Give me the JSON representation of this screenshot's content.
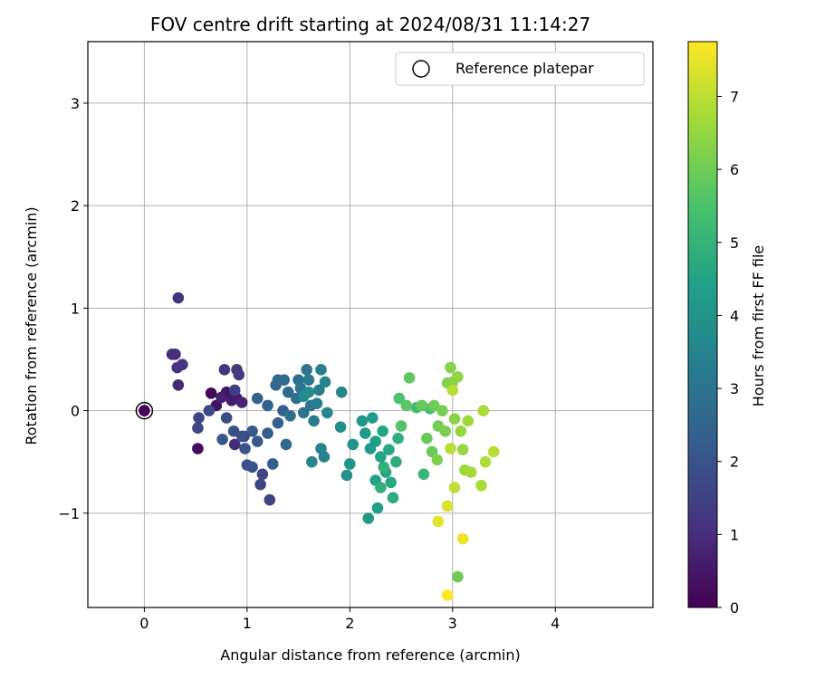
{
  "chart_data": {
    "type": "scatter",
    "title": "FOV centre drift starting at 2024/08/31 11:14:27",
    "xlabel": "Angular distance from reference (arcmin)",
    "ylabel": "Rotation from reference (arcmin)",
    "xlim": [
      -0.55,
      4.95
    ],
    "ylim": [
      -1.92,
      3.6
    ],
    "xticks": [
      0,
      1,
      2,
      3,
      4
    ],
    "yticks": [
      -1,
      0,
      1,
      2,
      3
    ],
    "xtick_labels": [
      "0",
      "1",
      "2",
      "3",
      "4"
    ],
    "ytick_labels": [
      "−1",
      "0",
      "1",
      "2",
      "3"
    ],
    "grid": true,
    "legend": {
      "position": "top-right",
      "entries": [
        "Reference platepar"
      ]
    },
    "reference_point": {
      "x": 0,
      "y": 0,
      "label": "Reference platepar"
    },
    "colorbar": {
      "label": "Hours from first FF file",
      "min": 0,
      "max": 7.75,
      "ticks": [
        0,
        1,
        2,
        3,
        4,
        5,
        6,
        7
      ],
      "tick_labels": [
        "0",
        "1",
        "2",
        "3",
        "4",
        "5",
        "6",
        "7"
      ],
      "colormap": "viridis"
    },
    "points": [
      {
        "x": 0.0,
        "y": 0.0,
        "c": 0.0
      },
      {
        "x": 0.65,
        "y": 0.17,
        "c": 0.15
      },
      {
        "x": 0.52,
        "y": -0.37,
        "c": 0.25
      },
      {
        "x": 0.7,
        "y": 0.05,
        "c": 0.35
      },
      {
        "x": 0.8,
        "y": 0.18,
        "c": 0.45
      },
      {
        "x": 0.9,
        "y": 0.12,
        "c": 0.55
      },
      {
        "x": 0.85,
        "y": 0.1,
        "c": 0.6
      },
      {
        "x": 0.75,
        "y": 0.13,
        "c": 0.7
      },
      {
        "x": 0.95,
        "y": 0.08,
        "c": 0.8
      },
      {
        "x": 0.33,
        "y": 0.25,
        "c": 0.9
      },
      {
        "x": 0.88,
        "y": -0.33,
        "c": 0.95
      },
      {
        "x": 0.27,
        "y": 0.55,
        "c": 1.0
      },
      {
        "x": 0.3,
        "y": 0.55,
        "c": 1.05
      },
      {
        "x": 0.32,
        "y": 0.42,
        "c": 1.1
      },
      {
        "x": 0.37,
        "y": 0.45,
        "c": 1.15
      },
      {
        "x": 0.33,
        "y": 1.1,
        "c": 1.2
      },
      {
        "x": 0.78,
        "y": 0.4,
        "c": 1.25
      },
      {
        "x": 0.9,
        "y": 0.4,
        "c": 1.3
      },
      {
        "x": 0.92,
        "y": 0.35,
        "c": 1.35
      },
      {
        "x": 0.97,
        "y": -0.25,
        "c": 1.4
      },
      {
        "x": 0.88,
        "y": 0.2,
        "c": 1.45
      },
      {
        "x": 1.22,
        "y": -0.87,
        "c": 1.5
      },
      {
        "x": 1.13,
        "y": -0.72,
        "c": 1.55
      },
      {
        "x": 1.15,
        "y": -0.62,
        "c": 1.6
      },
      {
        "x": 0.53,
        "y": -0.07,
        "c": 1.65
      },
      {
        "x": 0.52,
        "y": -0.17,
        "c": 1.7
      },
      {
        "x": 0.63,
        "y": 0.0,
        "c": 1.75
      },
      {
        "x": 0.8,
        "y": -0.07,
        "c": 1.8
      },
      {
        "x": 0.87,
        "y": -0.2,
        "c": 1.85
      },
      {
        "x": 0.95,
        "y": -0.25,
        "c": 1.9
      },
      {
        "x": 1.0,
        "y": -0.53,
        "c": 1.95
      },
      {
        "x": 1.05,
        "y": -0.55,
        "c": 2.0
      },
      {
        "x": 0.98,
        "y": -0.37,
        "c": 2.05
      },
      {
        "x": 0.76,
        "y": -0.28,
        "c": 2.1
      },
      {
        "x": 1.05,
        "y": -0.2,
        "c": 2.15
      },
      {
        "x": 1.1,
        "y": -0.3,
        "c": 2.2
      },
      {
        "x": 1.2,
        "y": -0.22,
        "c": 2.25
      },
      {
        "x": 1.25,
        "y": -0.52,
        "c": 2.3
      },
      {
        "x": 1.3,
        "y": -0.12,
        "c": 2.35
      },
      {
        "x": 1.35,
        "y": 0.0,
        "c": 2.4
      },
      {
        "x": 1.2,
        "y": 0.05,
        "c": 2.45
      },
      {
        "x": 1.1,
        "y": 0.12,
        "c": 2.5
      },
      {
        "x": 1.28,
        "y": 0.25,
        "c": 2.55
      },
      {
        "x": 1.38,
        "y": -0.33,
        "c": 2.6
      },
      {
        "x": 1.4,
        "y": 0.18,
        "c": 2.65
      },
      {
        "x": 1.3,
        "y": 0.3,
        "c": 2.7
      },
      {
        "x": 1.36,
        "y": 0.3,
        "c": 2.75
      },
      {
        "x": 1.42,
        "y": -0.05,
        "c": 2.8
      },
      {
        "x": 1.5,
        "y": 0.3,
        "c": 2.85
      },
      {
        "x": 1.48,
        "y": 0.12,
        "c": 2.9
      },
      {
        "x": 1.55,
        "y": -0.02,
        "c": 2.95
      },
      {
        "x": 1.52,
        "y": 0.22,
        "c": 3.0
      },
      {
        "x": 1.58,
        "y": 0.4,
        "c": 3.05
      },
      {
        "x": 1.62,
        "y": 0.05,
        "c": 3.1
      },
      {
        "x": 1.6,
        "y": 0.3,
        "c": 3.15
      },
      {
        "x": 1.65,
        "y": -0.1,
        "c": 3.2
      },
      {
        "x": 1.7,
        "y": 0.2,
        "c": 3.25
      },
      {
        "x": 1.68,
        "y": 0.07,
        "c": 3.3
      },
      {
        "x": 1.72,
        "y": 0.4,
        "c": 3.35
      },
      {
        "x": 1.75,
        "y": -0.45,
        "c": 3.4
      },
      {
        "x": 1.72,
        "y": -0.37,
        "c": 3.45
      },
      {
        "x": 1.76,
        "y": 0.28,
        "c": 3.5
      },
      {
        "x": 1.78,
        "y": -0.02,
        "c": 3.55
      },
      {
        "x": 1.63,
        "y": -0.5,
        "c": 3.6
      },
      {
        "x": 1.92,
        "y": 0.18,
        "c": 3.65
      },
      {
        "x": 1.55,
        "y": 0.14,
        "c": 3.7
      },
      {
        "x": 1.6,
        "y": 0.18,
        "c": 3.75
      },
      {
        "x": 1.91,
        "y": -0.16,
        "c": 3.8
      },
      {
        "x": 1.97,
        "y": -0.63,
        "c": 3.9
      },
      {
        "x": 2.03,
        "y": -0.33,
        "c": 4.0
      },
      {
        "x": 2.0,
        "y": -0.52,
        "c": 4.05
      },
      {
        "x": 2.12,
        "y": -0.1,
        "c": 4.1
      },
      {
        "x": 2.15,
        "y": -0.22,
        "c": 4.15
      },
      {
        "x": 2.18,
        "y": -1.05,
        "c": 4.2
      },
      {
        "x": 2.2,
        "y": -0.37,
        "c": 4.25
      },
      {
        "x": 2.22,
        "y": -0.07,
        "c": 4.3
      },
      {
        "x": 2.25,
        "y": -0.3,
        "c": 4.35
      },
      {
        "x": 2.27,
        "y": -0.95,
        "c": 4.4
      },
      {
        "x": 2.25,
        "y": -0.68,
        "c": 4.45
      },
      {
        "x": 2.3,
        "y": -0.45,
        "c": 4.5
      },
      {
        "x": 2.32,
        "y": -0.2,
        "c": 4.55
      },
      {
        "x": 2.35,
        "y": -0.6,
        "c": 4.6
      },
      {
        "x": 2.38,
        "y": -0.38,
        "c": 4.65
      },
      {
        "x": 2.4,
        "y": -0.7,
        "c": 4.7
      },
      {
        "x": 2.42,
        "y": -0.85,
        "c": 4.75
      },
      {
        "x": 2.45,
        "y": -0.5,
        "c": 4.8
      },
      {
        "x": 2.47,
        "y": -0.27,
        "c": 4.85
      },
      {
        "x": 2.3,
        "y": -0.75,
        "c": 4.9
      },
      {
        "x": 2.33,
        "y": -0.55,
        "c": 4.95
      },
      {
        "x": 2.72,
        "y": -0.62,
        "c": 5.1
      },
      {
        "x": 2.65,
        "y": 0.03,
        "c": 5.25
      },
      {
        "x": 2.78,
        "y": 0.02,
        "c": 5.4
      },
      {
        "x": 2.48,
        "y": 0.12,
        "c": 5.5
      },
      {
        "x": 2.5,
        "y": -0.15,
        "c": 5.6
      },
      {
        "x": 2.55,
        "y": 0.05,
        "c": 5.7
      },
      {
        "x": 2.58,
        "y": 0.32,
        "c": 5.8
      },
      {
        "x": 2.7,
        "y": 0.05,
        "c": 5.85
      },
      {
        "x": 2.75,
        "y": -0.27,
        "c": 5.9
      },
      {
        "x": 2.8,
        "y": -0.4,
        "c": 5.95
      },
      {
        "x": 2.82,
        "y": 0.05,
        "c": 6.0
      },
      {
        "x": 2.86,
        "y": -0.15,
        "c": 6.05
      },
      {
        "x": 2.9,
        "y": 0.0,
        "c": 6.1
      },
      {
        "x": 2.93,
        "y": -0.2,
        "c": 6.15
      },
      {
        "x": 2.85,
        "y": -0.48,
        "c": 6.2
      },
      {
        "x": 2.95,
        "y": 0.27,
        "c": 6.25
      },
      {
        "x": 2.98,
        "y": 0.42,
        "c": 6.3
      },
      {
        "x": 3.0,
        "y": 0.28,
        "c": 6.35
      },
      {
        "x": 3.02,
        "y": -0.08,
        "c": 6.4
      },
      {
        "x": 3.05,
        "y": 0.33,
        "c": 6.45
      },
      {
        "x": 3.08,
        "y": -0.2,
        "c": 6.5
      },
      {
        "x": 3.1,
        "y": -0.38,
        "c": 6.55
      },
      {
        "x": 3.12,
        "y": -0.58,
        "c": 6.6
      },
      {
        "x": 3.15,
        "y": -0.1,
        "c": 6.65
      },
      {
        "x": 3.18,
        "y": -0.6,
        "c": 6.7
      },
      {
        "x": 3.28,
        "y": -0.73,
        "c": 6.75
      },
      {
        "x": 3.3,
        "y": 0.0,
        "c": 6.8
      },
      {
        "x": 3.32,
        "y": -0.5,
        "c": 6.85
      },
      {
        "x": 3.4,
        "y": -0.4,
        "c": 6.9
      },
      {
        "x": 2.98,
        "y": -0.37,
        "c": 6.95
      },
      {
        "x": 3.02,
        "y": -0.75,
        "c": 7.0
      },
      {
        "x": 3.05,
        "y": -1.62,
        "c": 6.0
      },
      {
        "x": 2.95,
        "y": -0.93,
        "c": 7.35
      },
      {
        "x": 2.86,
        "y": -1.08,
        "c": 7.45
      },
      {
        "x": 3.1,
        "y": -1.25,
        "c": 7.55
      },
      {
        "x": 2.95,
        "y": -1.8,
        "c": 7.75
      },
      {
        "x": 3.0,
        "y": 0.2,
        "c": 6.95
      }
    ]
  }
}
